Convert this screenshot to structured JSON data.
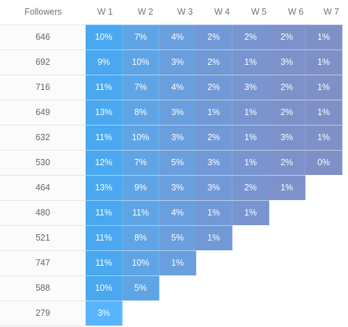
{
  "table": {
    "headers": [
      "Followers",
      "W 1",
      "W 2",
      "W 3",
      "W 4",
      "W 5",
      "W 6",
      "W 7"
    ],
    "rows": [
      {
        "followers": "646",
        "values": [
          "10%",
          "7%",
          "4%",
          "2%",
          "2%",
          "2%",
          "1%"
        ]
      },
      {
        "followers": "692",
        "values": [
          "9%",
          "10%",
          "3%",
          "2%",
          "1%",
          "3%",
          "1%"
        ]
      },
      {
        "followers": "716",
        "values": [
          "11%",
          "7%",
          "4%",
          "2%",
          "3%",
          "2%",
          "1%"
        ]
      },
      {
        "followers": "649",
        "values": [
          "13%",
          "8%",
          "3%",
          "1%",
          "1%",
          "2%",
          "1%"
        ]
      },
      {
        "followers": "632",
        "values": [
          "11%",
          "10%",
          "3%",
          "2%",
          "1%",
          "3%",
          "1%"
        ]
      },
      {
        "followers": "530",
        "values": [
          "12%",
          "7%",
          "5%",
          "3%",
          "1%",
          "2%",
          "0%"
        ]
      },
      {
        "followers": "464",
        "values": [
          "13%",
          "9%",
          "3%",
          "3%",
          "2%",
          "1%"
        ]
      },
      {
        "followers": "480",
        "values": [
          "11%",
          "11%",
          "4%",
          "1%",
          "1%"
        ]
      },
      {
        "followers": "521",
        "values": [
          "11%",
          "8%",
          "5%",
          "1%"
        ]
      },
      {
        "followers": "747",
        "values": [
          "11%",
          "10%",
          "1%"
        ]
      },
      {
        "followers": "588",
        "values": [
          "10%",
          "5%"
        ]
      },
      {
        "followers": "279",
        "values": [
          "3%"
        ]
      }
    ]
  },
  "colors": {
    "w1": "#4aa8f0",
    "w2": "#5fa5e6",
    "w3": "#6a9fdd",
    "w4": "#7199d6",
    "w5": "#7895cf",
    "w6": "#7d92cb",
    "w7": "#7f90c7",
    "w1_last": "#58b4ff"
  }
}
